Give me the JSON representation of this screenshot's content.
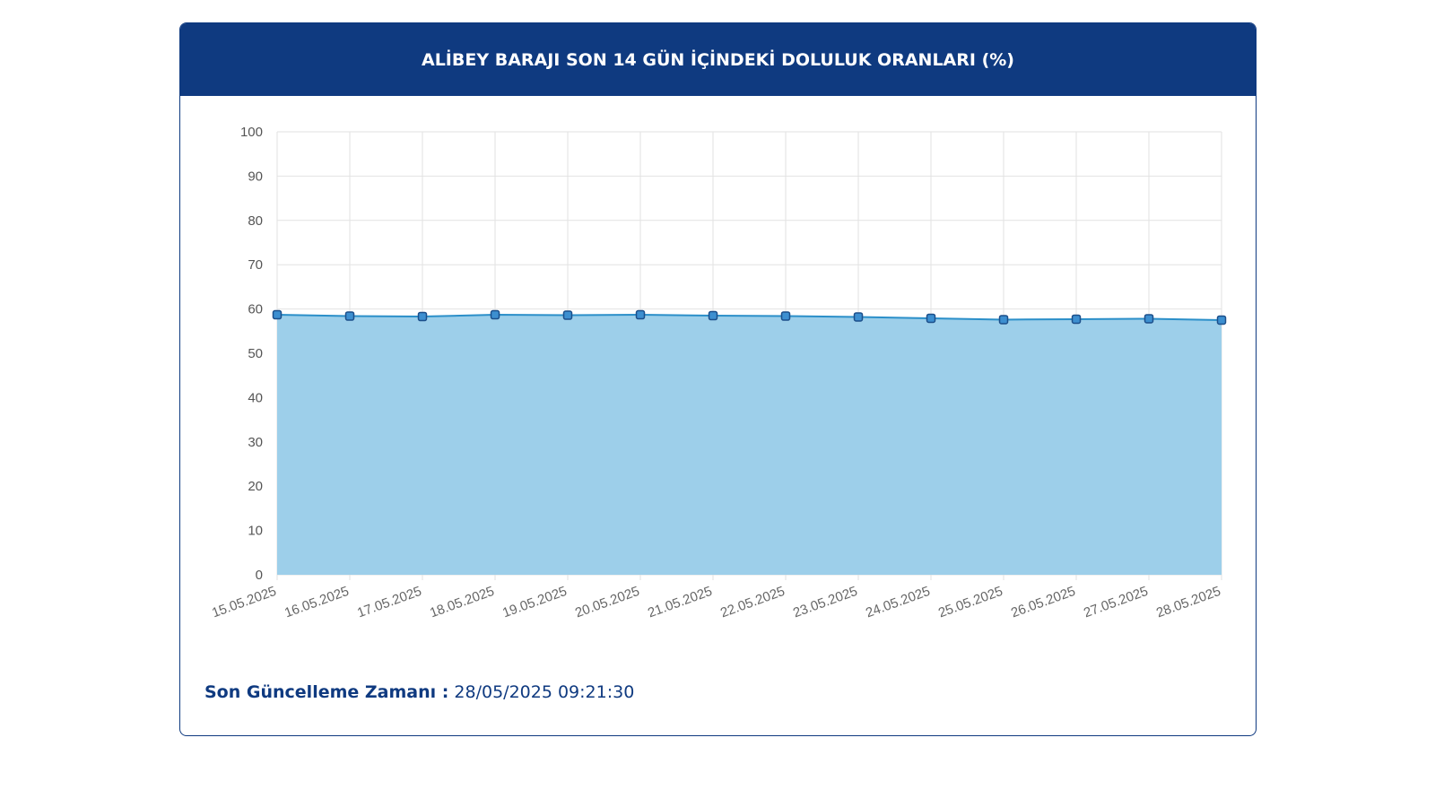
{
  "chart_data": {
    "type": "area",
    "title": "ALİBEY BARAJI SON 14 GÜN İÇİNDEKİ DOLULUK ORANLARI (%)",
    "categories": [
      "15.05.2025",
      "16.05.2025",
      "17.05.2025",
      "18.05.2025",
      "19.05.2025",
      "20.05.2025",
      "21.05.2025",
      "22.05.2025",
      "23.05.2025",
      "24.05.2025",
      "25.05.2025",
      "26.05.2025",
      "27.05.2025",
      "28.05.2025"
    ],
    "values": [
      58.7,
      58.4,
      58.3,
      58.7,
      58.6,
      58.7,
      58.5,
      58.4,
      58.2,
      57.9,
      57.6,
      57.7,
      57.8,
      57.5
    ],
    "color": "#2b8fc9",
    "fill": "#9dcfea",
    "ylim": [
      0,
      100
    ],
    "yticks": [
      0,
      10,
      20,
      30,
      40,
      50,
      60,
      70,
      80,
      90,
      100
    ],
    "grid": true
  },
  "footer": {
    "label": "Son Güncelleme Zamanı :",
    "value": "28/05/2025 09:21:30"
  }
}
